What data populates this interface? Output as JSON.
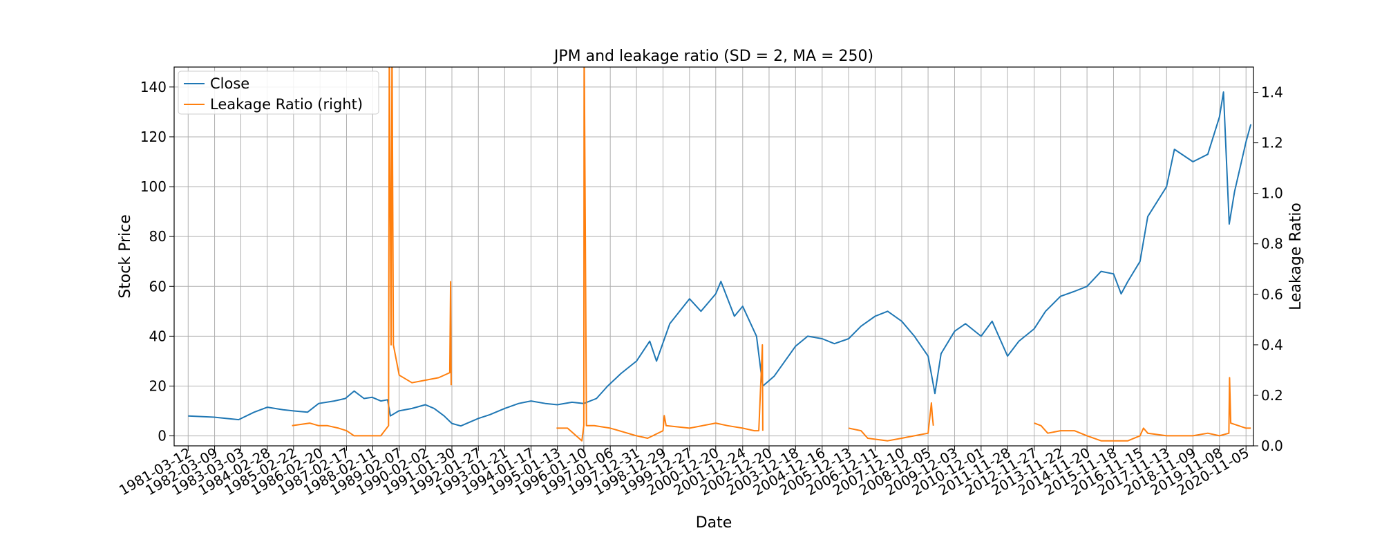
{
  "chart_data": {
    "type": "line",
    "title": "JPM and leakage ratio (SD = 2, MA = 250)",
    "xlabel": "Date",
    "ylabel": "Stock Price",
    "y2label": "Leakage Ratio",
    "ylim": [
      -4,
      148
    ],
    "y2lim": [
      0.0,
      1.5
    ],
    "yticks": [
      0,
      20,
      40,
      60,
      80,
      100,
      120,
      140
    ],
    "y2ticks": [
      "0.0",
      "0.2",
      "0.4",
      "0.6",
      "0.8",
      "1.0",
      "1.2",
      "1.4"
    ],
    "grid": true,
    "legend_position": "top-left",
    "x_ticks": [
      "1981-03-12",
      "1982-03-09",
      "1983-03-03",
      "1984-02-28",
      "1985-02-22",
      "1986-02-20",
      "1987-02-17",
      "1988-02-11",
      "1989-02-07",
      "1990-02-02",
      "1991-01-30",
      "1992-01-27",
      "1993-01-21",
      "1994-01-17",
      "1995-01-13",
      "1996-01-10",
      "1997-01-06",
      "1997-12-31",
      "1998-12-29",
      "1999-12-27",
      "2000-12-20",
      "2001-12-24",
      "2002-12-20",
      "2003-12-18",
      "2004-12-16",
      "2005-12-13",
      "2006-12-11",
      "2007-12-10",
      "2008-12-05",
      "2009-12-03",
      "2010-12-01",
      "2011-11-28",
      "2012-11-27",
      "2013-11-22",
      "2014-11-20",
      "2015-11-18",
      "2016-11-15",
      "2017-11-13",
      "2018-11-09",
      "2019-11-08",
      "2020-11-05"
    ],
    "series": [
      {
        "name": "Close",
        "axis": "left",
        "color": "#1f77b4",
        "points": [
          [
            "1981-03-12",
            8
          ],
          [
            "1982-03-01",
            7.5
          ],
          [
            "1983-02-01",
            6.5
          ],
          [
            "1983-09-01",
            9.5
          ],
          [
            "1984-03-01",
            11.5
          ],
          [
            "1984-10-01",
            10.5
          ],
          [
            "1985-03-01",
            10
          ],
          [
            "1985-09-01",
            9.5
          ],
          [
            "1986-02-01",
            13
          ],
          [
            "1986-09-01",
            14
          ],
          [
            "1987-02-01",
            15
          ],
          [
            "1987-06-01",
            18
          ],
          [
            "1987-10-15",
            15
          ],
          [
            "1988-02-01",
            15.5
          ],
          [
            "1988-06-01",
            14
          ],
          [
            "1988-09-01",
            14.5
          ],
          [
            "1988-10-10",
            8
          ],
          [
            "1989-02-01",
            10
          ],
          [
            "1989-08-01",
            11
          ],
          [
            "1990-02-01",
            12.5
          ],
          [
            "1990-06-01",
            11
          ],
          [
            "1990-10-15",
            8
          ],
          [
            "1991-01-30",
            5
          ],
          [
            "1991-06-01",
            4
          ],
          [
            "1992-01-27",
            7
          ],
          [
            "1992-07-01",
            8.5
          ],
          [
            "1993-01-21",
            11
          ],
          [
            "1993-08-01",
            13
          ],
          [
            "1994-01-17",
            14
          ],
          [
            "1994-08-01",
            13
          ],
          [
            "1995-01-13",
            12.5
          ],
          [
            "1995-08-01",
            13.5
          ],
          [
            "1996-01-10",
            13
          ],
          [
            "1996-07-01",
            15
          ],
          [
            "1996-12-01",
            20
          ],
          [
            "1997-06-01",
            25
          ],
          [
            "1997-12-31",
            30
          ],
          [
            "1998-07-01",
            38
          ],
          [
            "1998-10-01",
            30
          ],
          [
            "1999-04-01",
            45
          ],
          [
            "1999-12-27",
            55
          ],
          [
            "2000-06-01",
            50
          ],
          [
            "2000-12-20",
            57
          ],
          [
            "2001-03-01",
            62
          ],
          [
            "2001-09-01",
            48
          ],
          [
            "2001-12-24",
            52
          ],
          [
            "2002-07-01",
            40
          ],
          [
            "2002-09-25",
            20
          ],
          [
            "2003-03-01",
            24
          ],
          [
            "2003-12-18",
            36
          ],
          [
            "2004-06-01",
            40
          ],
          [
            "2004-12-16",
            39
          ],
          [
            "2005-06-01",
            37
          ],
          [
            "2005-12-13",
            39
          ],
          [
            "2006-06-01",
            44
          ],
          [
            "2006-12-11",
            48
          ],
          [
            "2007-06-01",
            50
          ],
          [
            "2007-12-10",
            46
          ],
          [
            "2008-06-01",
            40
          ],
          [
            "2008-12-05",
            32
          ],
          [
            "2009-03-09",
            17
          ],
          [
            "2009-06-01",
            33
          ],
          [
            "2009-12-03",
            42
          ],
          [
            "2010-05-01",
            45
          ],
          [
            "2010-12-01",
            40
          ],
          [
            "2011-05-01",
            46
          ],
          [
            "2011-11-28",
            32
          ],
          [
            "2012-05-01",
            38
          ],
          [
            "2012-11-27",
            43
          ],
          [
            "2013-05-01",
            50
          ],
          [
            "2013-11-22",
            56
          ],
          [
            "2014-06-01",
            58
          ],
          [
            "2014-11-20",
            60
          ],
          [
            "2015-06-01",
            66
          ],
          [
            "2015-11-18",
            65
          ],
          [
            "2016-03-01",
            57
          ],
          [
            "2016-06-01",
            62
          ],
          [
            "2016-11-15",
            70
          ],
          [
            "2017-03-01",
            88
          ],
          [
            "2017-11-13",
            100
          ],
          [
            "2018-03-01",
            115
          ],
          [
            "2018-11-09",
            110
          ],
          [
            "2019-06-01",
            113
          ],
          [
            "2019-11-08",
            128
          ],
          [
            "2020-01-01",
            138
          ],
          [
            "2020-03-20",
            85
          ],
          [
            "2020-06-01",
            98
          ],
          [
            "2020-11-05",
            118
          ],
          [
            "2021-01-10",
            125
          ]
        ]
      },
      {
        "name": "Leakage Ratio (right)",
        "axis": "right",
        "color": "#ff7f0e",
        "segments": [
          [
            [
              "1985-02-01",
              0.08
            ],
            [
              "1985-10-01",
              0.09
            ],
            [
              "1986-02-01",
              0.08
            ],
            [
              "1986-06-01",
              0.08
            ],
            [
              "1986-11-01",
              0.07
            ],
            [
              "1987-02-17",
              0.06
            ],
            [
              "1987-06-01",
              0.04
            ],
            [
              "1988-01-01",
              0.04
            ],
            [
              "1988-06-01",
              0.04
            ],
            [
              "1988-09-15",
              0.08
            ],
            [
              "1988-09-25",
              1.6
            ],
            [
              "1988-10-20",
              0.4
            ],
            [
              "1988-11-01",
              1.6
            ],
            [
              "1988-11-20",
              0.4
            ],
            [
              "1989-02-07",
              0.28
            ],
            [
              "1989-08-01",
              0.25
            ],
            [
              "1990-02-02",
              0.26
            ],
            [
              "1990-08-01",
              0.27
            ],
            [
              "1991-01-01",
              0.29
            ],
            [
              "1991-01-12",
              0.65
            ],
            [
              "1991-01-20",
              0.24
            ]
          ],
          [
            [
              "1995-01-01",
              0.07
            ],
            [
              "1995-06-01",
              0.07
            ],
            [
              "1995-12-15",
              0.02
            ],
            [
              "1996-01-10",
              0.08
            ],
            [
              "1996-01-15",
              1.6
            ],
            [
              "1996-02-15",
              0.08
            ],
            [
              "1996-06-01",
              0.08
            ],
            [
              "1997-01-06",
              0.07
            ],
            [
              "1997-12-31",
              0.04
            ],
            [
              "1998-06-01",
              0.03
            ],
            [
              "1998-12-29",
              0.06
            ],
            [
              "1999-01-15",
              0.12
            ],
            [
              "1999-02-10",
              0.08
            ],
            [
              "1999-12-27",
              0.07
            ],
            [
              "2000-12-20",
              0.09
            ],
            [
              "2001-06-01",
              0.08
            ],
            [
              "2001-12-24",
              0.07
            ],
            [
              "2002-06-01",
              0.06
            ],
            [
              "2002-08-01",
              0.06
            ],
            [
              "2002-09-20",
              0.4
            ],
            [
              "2002-09-25",
              0.06
            ]
          ],
          [
            [
              "2005-12-13",
              0.07
            ],
            [
              "2006-06-01",
              0.06
            ],
            [
              "2006-09-01",
              0.03
            ],
            [
              "2007-06-01",
              0.02
            ],
            [
              "2007-12-10",
              0.03
            ],
            [
              "2008-06-01",
              0.04
            ],
            [
              "2008-12-05",
              0.05
            ],
            [
              "2009-01-20",
              0.17
            ],
            [
              "2009-02-01",
              0.12
            ],
            [
              "2009-02-15",
              0.08
            ]
          ],
          [
            [
              "2012-11-27",
              0.09
            ],
            [
              "2013-03-01",
              0.08
            ],
            [
              "2013-06-01",
              0.05
            ],
            [
              "2013-11-22",
              0.06
            ],
            [
              "2014-06-01",
              0.06
            ],
            [
              "2014-11-20",
              0.04
            ],
            [
              "2015-06-01",
              0.02
            ],
            [
              "2015-11-18",
              0.02
            ],
            [
              "2016-06-01",
              0.02
            ],
            [
              "2016-11-15",
              0.04
            ],
            [
              "2017-01-01",
              0.07
            ],
            [
              "2017-03-01",
              0.05
            ],
            [
              "2017-11-13",
              0.04
            ],
            [
              "2018-11-09",
              0.04
            ],
            [
              "2019-06-01",
              0.05
            ],
            [
              "2019-11-08",
              0.04
            ],
            [
              "2020-03-15",
              0.05
            ],
            [
              "2020-03-25",
              0.27
            ],
            [
              "2020-04-10",
              0.09
            ],
            [
              "2020-11-05",
              0.07
            ],
            [
              "2021-01-10",
              0.07
            ]
          ]
        ]
      }
    ]
  }
}
